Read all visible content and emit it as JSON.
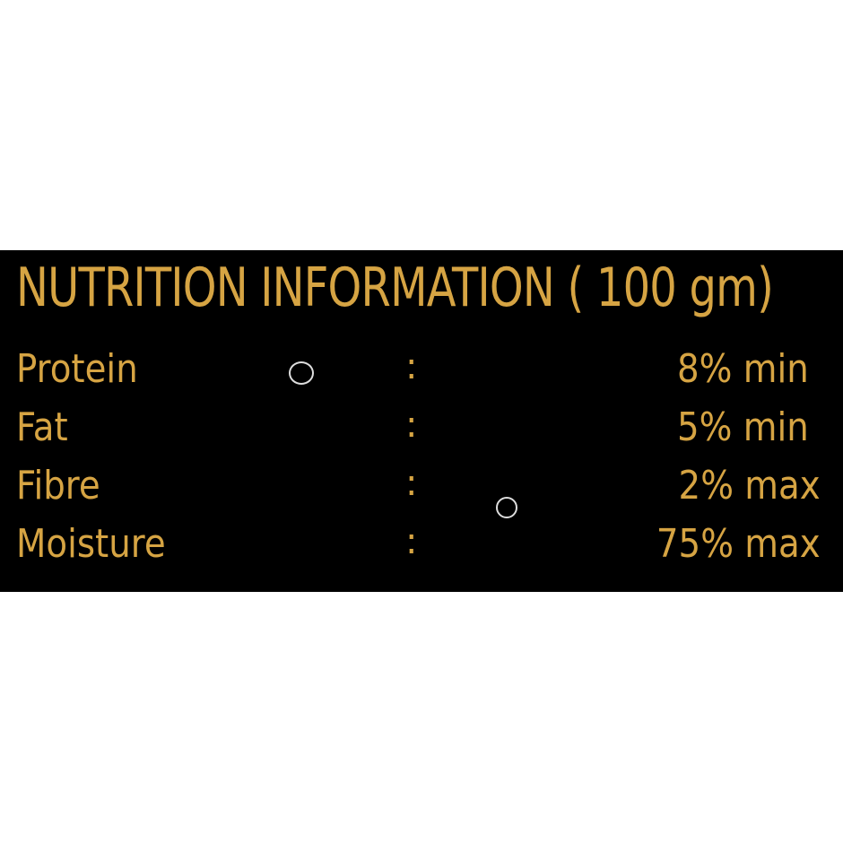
{
  "title": "NUTRITION INFORMATION ( 100 gm)",
  "colors": {
    "background": "#000000",
    "text": "#d6a443"
  },
  "rows": [
    {
      "label": "Protein",
      "separator": ":",
      "value": "8% min"
    },
    {
      "label": "Fat",
      "separator": ":",
      "value": "5% min"
    },
    {
      "label": "Fibre",
      "separator": ":",
      "value": "2% max"
    },
    {
      "label": "Moisture",
      "separator": ":",
      "value": "75% max"
    }
  ]
}
